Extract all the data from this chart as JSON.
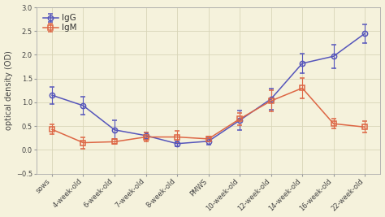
{
  "x_labels": [
    "sows",
    "4-week-old",
    "6-week-old",
    "7-week-old",
    "8-week-old",
    "PMWS",
    "10-week-old",
    "12-week-old",
    "14-week-old",
    "16-week-old",
    "22-week-old"
  ],
  "IgG_values": [
    1.15,
    0.93,
    0.42,
    0.3,
    0.13,
    0.18,
    0.62,
    1.07,
    1.82,
    1.97,
    2.45
  ],
  "IgG_errors": [
    0.18,
    0.18,
    0.2,
    0.07,
    0.05,
    0.07,
    0.2,
    0.22,
    0.2,
    0.25,
    0.2
  ],
  "IgM_values": [
    0.43,
    0.15,
    0.17,
    0.27,
    0.27,
    0.23,
    0.65,
    1.03,
    1.3,
    0.55,
    0.48
  ],
  "IgM_errors": [
    0.1,
    0.12,
    0.05,
    0.1,
    0.13,
    0.05,
    0.13,
    0.22,
    0.22,
    0.1,
    0.12
  ],
  "IgG_color": "#5555bb",
  "IgM_color": "#dd6644",
  "background_color": "#f5f2dc",
  "ylabel": "optical density (OD)",
  "ylim": [
    -0.5,
    3.0
  ],
  "yticks": [
    -0.5,
    0.0,
    0.5,
    1.0,
    1.5,
    2.0,
    2.5,
    3.0
  ],
  "grid_color": "#d8d5b8",
  "label_fontsize": 7,
  "tick_fontsize": 6,
  "legend_fontsize": 7.5
}
